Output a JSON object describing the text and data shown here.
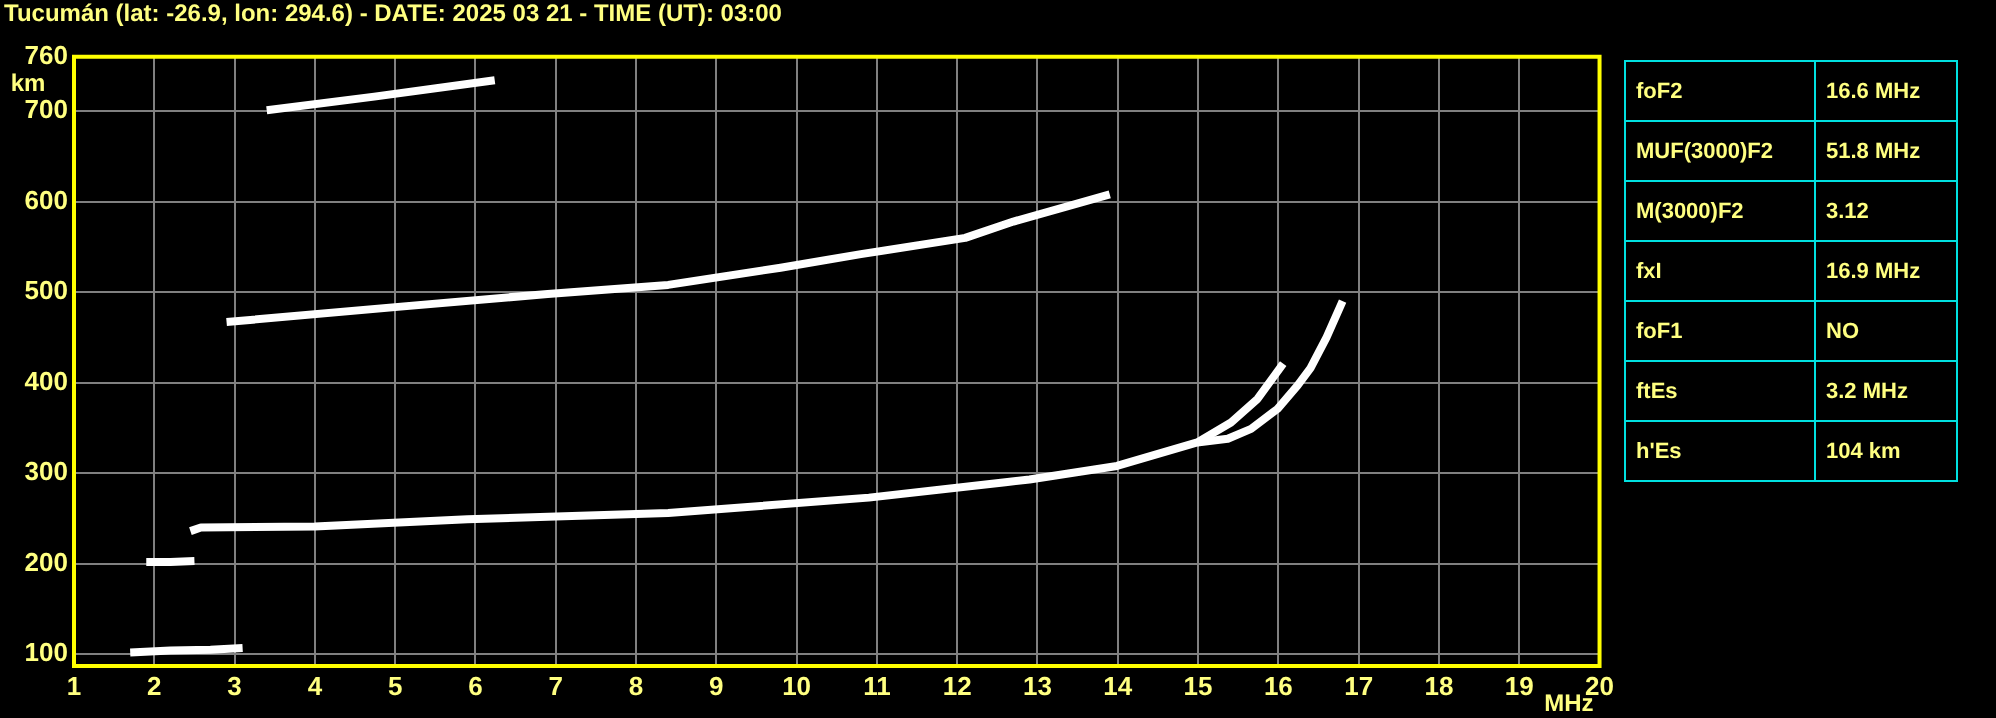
{
  "chart_data": {
    "type": "line",
    "title": "Tucumán (lat: -26.9, lon: 294.6) - DATE: 2025 03 21 - TIME (UT): 03:00",
    "xlabel": "MHz",
    "ylabel": "km",
    "xlim": [
      1,
      20
    ],
    "ylim": [
      87,
      760
    ],
    "xticks": [
      1,
      2,
      3,
      4,
      5,
      6,
      7,
      8,
      9,
      10,
      11,
      12,
      13,
      14,
      15,
      16,
      17,
      18,
      19,
      20
    ],
    "yticks": [
      100,
      200,
      300,
      400,
      500,
      600,
      700,
      760
    ],
    "grid": true,
    "legend": false,
    "marker": "none",
    "line_style": "solid",
    "series": [
      {
        "color": "#ffffff",
        "x": [
          1.7,
          2.2,
          2.7,
          3.1
        ],
        "values": [
          102,
          104,
          105,
          107
        ]
      },
      {
        "color": "#ffffff",
        "x": [
          1.9,
          2.2,
          2.5
        ],
        "values": [
          202,
          202,
          203
        ]
      },
      {
        "color": "#ffffff",
        "x": [
          2.45,
          2.58,
          4,
          5.9,
          8.4,
          10.9,
          12.6,
          12.9,
          13.99,
          14.99,
          15.41,
          15.74,
          16.06
        ],
        "values": [
          236,
          240,
          241,
          249,
          256,
          273,
          290,
          293,
          308,
          334,
          356,
          382,
          421
        ]
      },
      {
        "color": "#ffffff",
        "x": [
          14.99,
          15.37,
          15.66,
          15.99,
          16.24,
          16.4,
          16.6,
          16.8
        ],
        "values": [
          334,
          338,
          349,
          371,
          397,
          416,
          450,
          490
        ]
      },
      {
        "color": "#ffffff",
        "x": [
          2.9,
          5.07,
          6.9,
          8.4,
          9.8,
          10.8,
          12.1,
          12.7,
          13.9
        ],
        "values": [
          467,
          484,
          498,
          508,
          527,
          542,
          560,
          578,
          608
        ]
      },
      {
        "color": "#ffffff",
        "x": [
          3.4,
          4.74,
          6.24
        ],
        "values": [
          701,
          716,
          734
        ]
      }
    ],
    "annotations": [
      "foF2",
      "16.6 MHz",
      "MUF(3000)F2",
      "51.8 MHz",
      "M(3000)F2",
      "3.12",
      "fxI",
      "16.9 MHz",
      "foF1",
      "NO",
      "ftEs",
      "3.2 MHz",
      "h'Es",
      "104 km"
    ]
  }
}
